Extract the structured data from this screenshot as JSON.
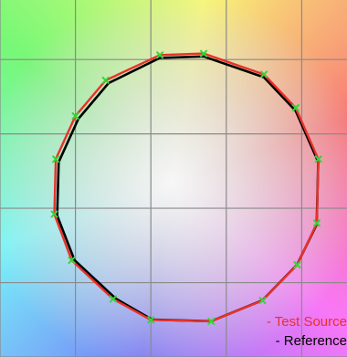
{
  "chart_data": {
    "type": "line",
    "title": "",
    "xlabel": "",
    "ylabel": "",
    "background": "color-wheel",
    "grid": true,
    "xlim": [
      0,
      4.6
    ],
    "ylim": [
      0,
      4.8
    ],
    "colors": {
      "test_source": "#e8322a",
      "reference": "#000000",
      "markers": "#36d43a",
      "grid": "#8a8a8a"
    },
    "series": [
      {
        "name": "Test Source",
        "closed": true,
        "x": [
          2.12,
          2.7,
          3.5,
          3.92,
          4.22,
          4.2,
          3.94,
          3.48,
          2.8,
          2.0,
          1.5,
          0.95,
          0.72,
          0.74,
          1.0,
          1.4
        ],
        "y": [
          4.06,
          4.08,
          3.8,
          3.35,
          2.66,
          1.8,
          1.24,
          0.76,
          0.48,
          0.5,
          0.78,
          1.3,
          1.92,
          2.66,
          3.24,
          3.72
        ]
      },
      {
        "name": "Reference",
        "closed": true,
        "x": [
          2.1,
          2.68,
          3.48,
          3.9,
          4.2,
          4.18,
          3.92,
          3.46,
          2.78,
          2.0,
          1.52,
          0.97,
          0.74,
          0.76,
          1.02,
          1.42
        ],
        "y": [
          4.04,
          4.06,
          3.78,
          3.33,
          2.64,
          1.8,
          1.26,
          0.78,
          0.5,
          0.52,
          0.8,
          1.32,
          1.92,
          2.64,
          3.22,
          3.7
        ]
      }
    ]
  },
  "legend": {
    "test_label": "- Test Source",
    "reference_label": "- Reference"
  }
}
